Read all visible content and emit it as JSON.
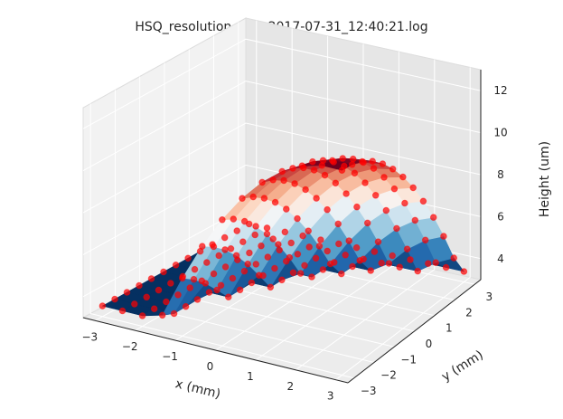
{
  "chart_data": {
    "type": "surface3d",
    "title": "HSQ_resolution_fine_2017-07-31_12:40:21.log",
    "xlabel": "x (mm)",
    "ylabel": "y (mm)",
    "zlabel": "Height (um)",
    "xticks": [
      "−3",
      "−2",
      "−1",
      "0",
      "1",
      "2",
      "3"
    ],
    "yticks": [
      "−3",
      "−2",
      "−1",
      "0",
      "1",
      "2",
      "3"
    ],
    "zticks": [
      "4",
      "6",
      "8",
      "10",
      "12"
    ],
    "xlim": [
      -3.3,
      3.3
    ],
    "ylim": [
      -3.3,
      3.3
    ],
    "zlim": [
      3,
      13
    ],
    "colormap": "RdBu_r",
    "point_color": "#ff0000",
    "x": [
      -3.0,
      -2.5,
      -2.0,
      -1.5,
      -1.0,
      -0.5,
      0.0,
      0.5,
      1.0,
      1.5,
      2.0,
      2.5,
      3.0
    ],
    "y": [
      -3.0,
      -2.5,
      -2.0,
      -1.5,
      -1.0,
      -0.5,
      0.0,
      0.5,
      1.0,
      1.5,
      2.0,
      2.5,
      3.0
    ],
    "z_model": "z = 12.8 - 0.5*(x - 3.2 - 0.15*y)^2 - 0.25*(y + 3.2)^2 ; z >= 3.5"
  }
}
